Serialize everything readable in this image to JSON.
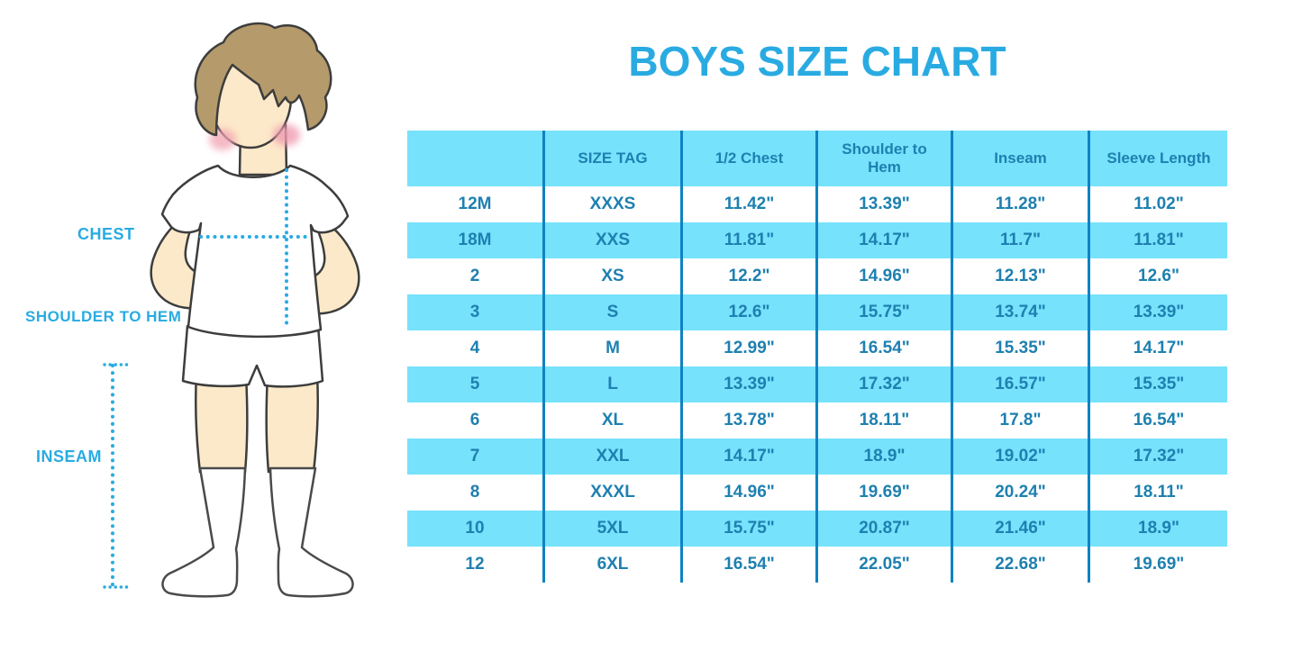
{
  "title": "BOYS SIZE CHART",
  "illustration": {
    "description": "cartoon boy in white t-shirt, shorts and knee socks with dotted measurement guides",
    "labels": {
      "chest": "CHEST",
      "shoulder_to_hem": "SHOULDER TO HEM",
      "inseam": "INSEAM"
    }
  },
  "colors": {
    "accent_blue": "#29ABE2",
    "row_light_blue": "#76E2FC",
    "table_text_blue": "#1E80B0",
    "divider_blue": "#0F82C2",
    "hair_brown": "#B59A6B",
    "skin": "#FCE9C9"
  },
  "chart_data": {
    "type": "table",
    "title": "BOYS SIZE CHART",
    "columns": [
      "",
      "SIZE TAG",
      "1/2 Chest",
      "Shoulder to Hem",
      "Inseam",
      "Sleeve Length"
    ],
    "rows": [
      [
        "12M",
        "XXXS",
        "11.42\"",
        "13.39\"",
        "11.28\"",
        "11.02\""
      ],
      [
        "18M",
        "XXS",
        "11.81\"",
        "14.17\"",
        "11.7\"",
        "11.81\""
      ],
      [
        "2",
        "XS",
        "12.2\"",
        "14.96\"",
        "12.13\"",
        "12.6\""
      ],
      [
        "3",
        "S",
        "12.6\"",
        "15.75\"",
        "13.74\"",
        "13.39\""
      ],
      [
        "4",
        "M",
        "12.99\"",
        "16.54\"",
        "15.35\"",
        "14.17\""
      ],
      [
        "5",
        "L",
        "13.39\"",
        "17.32\"",
        "16.57\"",
        "15.35\""
      ],
      [
        "6",
        "XL",
        "13.78\"",
        "18.11\"",
        "17.8\"",
        "16.54\""
      ],
      [
        "7",
        "XXL",
        "14.17\"",
        "18.9\"",
        "19.02\"",
        "17.32\""
      ],
      [
        "8",
        "XXXL",
        "14.96\"",
        "19.69\"",
        "20.24\"",
        "18.11\""
      ],
      [
        "10",
        "5XL",
        "15.75\"",
        "20.87\"",
        "21.46\"",
        "18.9\""
      ],
      [
        "12",
        "6XL",
        "16.54\"",
        "22.05\"",
        "22.68\"",
        "19.69\""
      ]
    ],
    "row_striping": "first data row white, alternating light blue",
    "legend_position": "none",
    "grid": "vertical dividers only"
  }
}
